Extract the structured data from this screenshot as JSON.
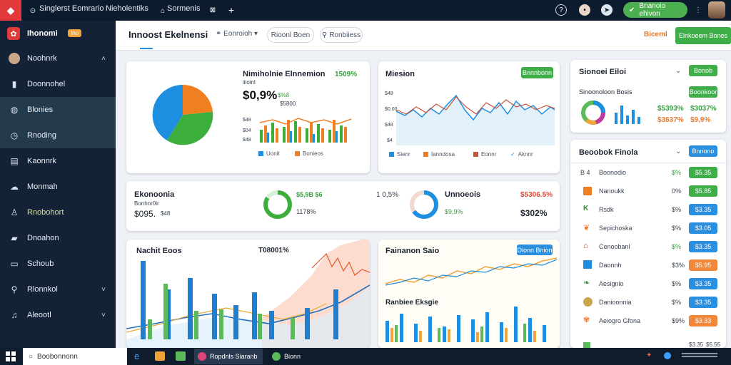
{
  "topbar": {
    "tab1": "Singlerst Eomrario",
    "tab1b": "Nieholentiks",
    "tab2": "Sormenis",
    "pill_label": "Bnanoio ehivon"
  },
  "sidebar": {
    "brand": "Ihonomi",
    "brand_badge": "Ino",
    "items": [
      {
        "label": "Noohnrk",
        "chev": "˄"
      },
      {
        "label": "Doonnohel"
      },
      {
        "label": "Blonies"
      },
      {
        "label": "Rnoding"
      },
      {
        "label": "Kaonnrk"
      },
      {
        "label": "Monmah"
      },
      {
        "label": "Rnobohort"
      },
      {
        "label": "Dnoahon"
      },
      {
        "label": "Schoub"
      },
      {
        "label": "Rlonnkol",
        "chev": "˅"
      },
      {
        "label": "Aleootl",
        "chev": "˅"
      }
    ]
  },
  "header": {
    "title": "Innoost Ekelnensi",
    "filter1": "Eonroioh",
    "filter2": "Rioonl Boen",
    "filter3": "Ronbiiess",
    "right_link": "Biceml",
    "right_button": "Elnkoeem Bones"
  },
  "cards": {
    "overview": {
      "title": "Nimiholnie Elnnemion",
      "pct": "1509%",
      "sub": "iiioinl",
      "big": "$0,9%",
      "big_tag": "$%8",
      "small": "$5800",
      "legend": [
        "Uonit",
        "Bonieos"
      ],
      "axis": [
        "$48",
        "$04",
        "$48"
      ]
    },
    "mission": {
      "title": "Miesion",
      "button": "Bnnnbonn",
      "legend": [
        "Sienr",
        "Ianndosa",
        "Eonnr",
        "Aknnr"
      ],
      "axis": [
        "$48",
        "$0.00",
        "$48",
        "$4"
      ]
    },
    "economia": {
      "title": "Ekonoonia",
      "sub": "Bonhnr0ir",
      "value": "$095.",
      "value_tag": "$48",
      "ring1_top": "$5,9B $6",
      "ring1_bot": "1178%",
      "mid": "1 0,5%",
      "title2": "Unnoeois",
      "top_right": "$5306.5%",
      "ring2_val": "$9,9%",
      "ring2_big": "$302%"
    },
    "market": {
      "title": "Nachit Eoos",
      "value": "T08001%"
    },
    "finance": {
      "title": "Fainanon Saio",
      "button": "Dionn Bnion",
      "sub": "Ranbiee Eksgie"
    },
    "side_top": {
      "title": "Sionoei Eiloi",
      "button": "Bonob",
      "sub": "Sinoonoloon Bosis",
      "button2": "Boonkoor",
      "v1": "$5393%",
      "v2": "$3037%",
      "v3": "$3637%",
      "v4": "$9,9%"
    },
    "side_list": {
      "title": "Beoobok Finola",
      "button": "Bnnono",
      "rows": [
        {
          "label": "Boonodio",
          "prefix": "B 4",
          "pct": "$%",
          "btn": "$5.35",
          "color": "green"
        },
        {
          "label": "Nanoukk",
          "pct": "0%",
          "btn": "$5.85",
          "color": "green"
        },
        {
          "label": "Rsdk",
          "pct": "$%",
          "btn": "$3.35",
          "color": "blue"
        },
        {
          "label": "Sepichoska",
          "pct": "$%",
          "btn": "$3.05",
          "color": "blue"
        },
        {
          "label": "Cenoobanl",
          "pct": "$%",
          "btn": "$3.35",
          "color": "blue"
        },
        {
          "label": "Daonnh",
          "pct": "$3%",
          "btn": "$5.95",
          "color": "orange"
        },
        {
          "label": "Aesignio",
          "pct": "$%",
          "btn": "$3.35",
          "color": "blue"
        },
        {
          "label": "Danioonnia",
          "pct": "$%",
          "btn": "$3.35",
          "color": "blue"
        },
        {
          "label": "Aeiogro Gfona",
          "pct": "$9%",
          "btn": "$3.33",
          "color": "orange"
        }
      ],
      "footer": [
        "$3.35",
        "$5.55"
      ]
    }
  },
  "taskbar": {
    "search_placeholder": "Boobonnonn",
    "app1": "Ropdnls Siaranb",
    "app2": "Bionn"
  },
  "colors": {
    "accent_green": "#3fae49",
    "accent_blue": "#2b8fe0",
    "accent_orange": "#f0873a",
    "sidebar_bg": "#142238"
  }
}
